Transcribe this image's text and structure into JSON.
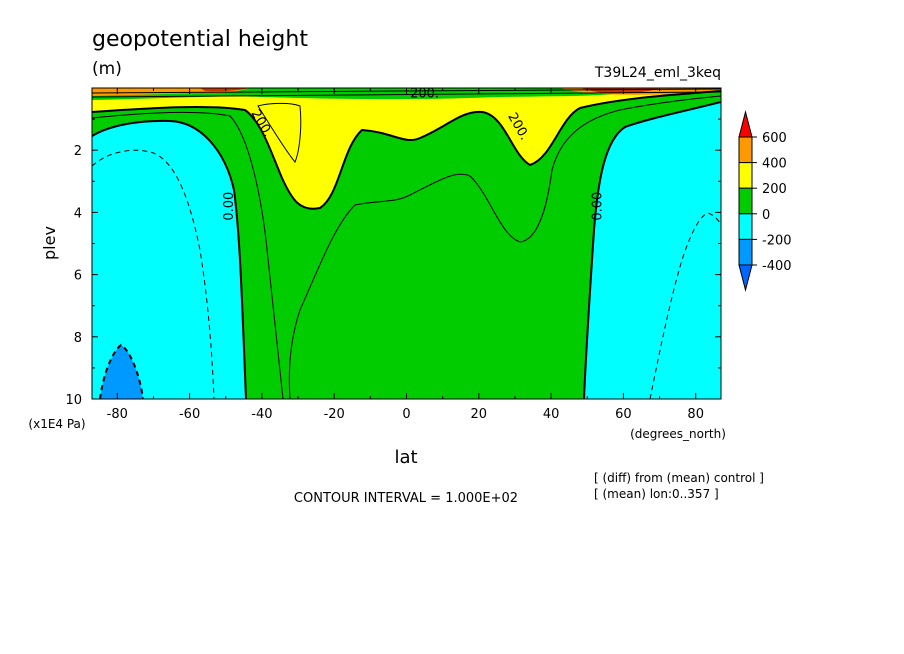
{
  "chart_data": {
    "type": "heatmap",
    "title": "geopotential height",
    "units": "(m)",
    "run_label": "T39L24_eml_3keq",
    "xlabel": "lat",
    "x_units": "(degrees_north)",
    "ylabel": "plev",
    "y_units": "(x1E4 Pa)",
    "xlim": [
      -87,
      87
    ],
    "ylim": [
      0,
      10
    ],
    "y_inverted": true,
    "x_ticks": [
      "-80",
      "-60",
      "-40",
      "-20",
      "0",
      "20",
      "40",
      "60",
      "80"
    ],
    "y_ticks": [
      "2",
      "4",
      "6",
      "8",
      "10"
    ],
    "contour_interval_text": "CONTOUR INTERVAL = 1.000E+02",
    "notes": [
      "[ (diff) from (mean) control ]",
      "[ (mean) lon:0..357 ]"
    ],
    "contour_labels": [
      {
        "text": "200.",
        "lat": 5,
        "plev": 0.3
      },
      {
        "text": "200.",
        "lat": -41,
        "plev": 1.2
      },
      {
        "text": "200.",
        "lat": 30,
        "plev": 1.3
      },
      {
        "text": "0.00",
        "lat": -48,
        "plev": 3.8
      },
      {
        "text": "0.00",
        "lat": 54,
        "plev": 3.8
      }
    ],
    "colorbar": {
      "levels": [
        "600",
        "400",
        "200",
        "0",
        "-200",
        "-400"
      ],
      "colors": [
        "#ff0000",
        "#ff9900",
        "#ffff00",
        "#00cc00",
        "#00ffff",
        "#0099ff",
        "#0066ff"
      ]
    },
    "fill_colors": {
      "below_-200": "#0099ff",
      "-200_to_0": "#00ffff",
      "0_to_200": "#00cc00",
      "200_to_400": "#ffff00",
      "400_to_600": "#ff9900",
      "above_600": "#cc3300"
    }
  }
}
